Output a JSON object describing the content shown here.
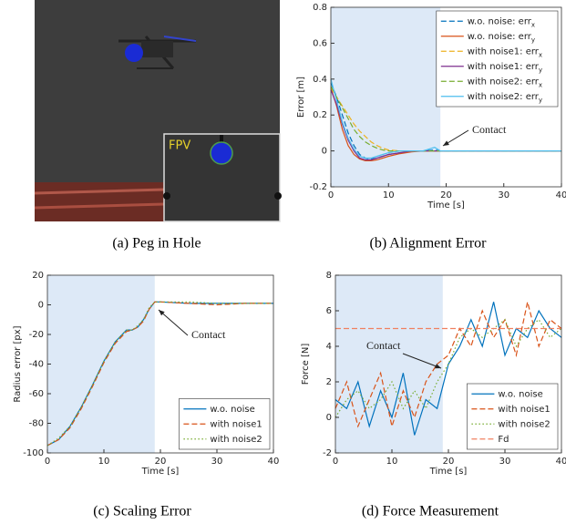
{
  "image_panel": {
    "inset_label": "FPV",
    "caption": "(a) Peg in Hole"
  },
  "chart_data": [
    {
      "type": "line",
      "caption": "(b) Alignment Error",
      "xlabel": "Time [s]",
      "ylabel": "Error [m]",
      "annotation": "Contact",
      "xlim": [
        0,
        40
      ],
      "ylim": [
        -0.2,
        0.8
      ],
      "xticks": [
        0,
        10,
        20,
        30,
        40
      ],
      "yticks": [
        -0.2,
        0,
        0.2,
        0.4,
        0.6,
        0.8
      ],
      "shade": [
        0,
        19
      ],
      "legend": "upper right",
      "x": [
        0,
        1,
        2,
        3,
        4,
        5,
        6,
        7,
        8,
        9,
        10,
        12,
        14,
        16,
        18,
        19,
        20,
        25,
        30,
        35,
        40
      ],
      "series": [
        {
          "name": "w.o. noise: err",
          "name_subscript": "x",
          "color": "#0072bd",
          "dash": "dashed",
          "values": [
            0.38,
            0.3,
            0.2,
            0.1,
            0.03,
            -0.02,
            -0.04,
            -0.045,
            -0.04,
            -0.03,
            -0.02,
            -0.01,
            0,
            0,
            0.005,
            0,
            0,
            0,
            0,
            0,
            0
          ]
        },
        {
          "name": "w.o. noise: err",
          "name_subscript": "y",
          "color": "#d95319",
          "dash": "solid",
          "values": [
            0.35,
            0.25,
            0.12,
            0.03,
            -0.02,
            -0.045,
            -0.055,
            -0.055,
            -0.05,
            -0.04,
            -0.03,
            -0.015,
            -0.005,
            0,
            0,
            0,
            0,
            0,
            0,
            0,
            0
          ]
        },
        {
          "name": "with noise1: err",
          "name_subscript": "x",
          "color": "#edb120",
          "dash": "dashed",
          "values": [
            0.35,
            0.3,
            0.25,
            0.2,
            0.15,
            0.11,
            0.08,
            0.05,
            0.03,
            0.015,
            0.005,
            0,
            0,
            0,
            0,
            0,
            0,
            0,
            0,
            0,
            0
          ]
        },
        {
          "name": "with noise1: err",
          "name_subscript": "y",
          "color": "#7e2f8e",
          "dash": "solid",
          "values": [
            0.34,
            0.26,
            0.15,
            0.06,
            0,
            -0.04,
            -0.05,
            -0.05,
            -0.04,
            -0.03,
            -0.02,
            -0.01,
            0,
            0,
            0,
            0,
            0,
            0,
            0,
            0,
            0
          ]
        },
        {
          "name": "with noise2: err",
          "name_subscript": "x",
          "color": "#77ac30",
          "dash": "dashed",
          "values": [
            0.36,
            0.3,
            0.24,
            0.18,
            0.12,
            0.08,
            0.05,
            0.03,
            0.015,
            0.005,
            0,
            0,
            0,
            0,
            0,
            0,
            0,
            0,
            0,
            0,
            0
          ]
        },
        {
          "name": "with noise2: err",
          "name_subscript": "y",
          "color": "#4dbeee",
          "dash": "solid",
          "values": [
            0.4,
            0.28,
            0.16,
            0.07,
            0.01,
            -0.03,
            -0.04,
            -0.04,
            -0.03,
            -0.02,
            -0.01,
            0,
            0,
            0,
            0.02,
            0,
            0,
            0,
            0,
            0,
            0
          ]
        }
      ]
    },
    {
      "type": "line",
      "caption": "(c) Scaling Error",
      "xlabel": "Time [s]",
      "ylabel": "Radius error [px]",
      "annotation": "Contact",
      "xlim": [
        0,
        40
      ],
      "ylim": [
        -100,
        20
      ],
      "xticks": [
        0,
        10,
        20,
        30,
        40
      ],
      "yticks": [
        -100,
        -80,
        -60,
        -40,
        -20,
        0,
        20
      ],
      "shade": [
        0,
        19
      ],
      "legend": "lower right",
      "x": [
        0,
        2,
        4,
        6,
        8,
        10,
        12,
        14,
        15,
        16,
        17,
        18,
        19,
        20,
        25,
        30,
        35,
        40
      ],
      "series": [
        {
          "name": "w.o. noise",
          "color": "#0072bd",
          "dash": "solid",
          "values": [
            -95,
            -91,
            -82,
            -69,
            -54,
            -38,
            -25,
            -17,
            -17,
            -15,
            -10,
            -3,
            2,
            2,
            1,
            1,
            1,
            1
          ]
        },
        {
          "name": "with noise1",
          "color": "#d95319",
          "dash": "dashed",
          "values": [
            -95,
            -91,
            -83,
            -70,
            -55,
            -39,
            -26,
            -18,
            -17,
            -15,
            -11,
            -3,
            2,
            2,
            1,
            0,
            1,
            1
          ]
        },
        {
          "name": "with noise2",
          "color": "#77ac30",
          "dash": "dotted",
          "values": [
            -95,
            -90,
            -82,
            -69,
            -54,
            -38,
            -25,
            -17,
            -17,
            -14,
            -10,
            -2,
            2,
            2,
            2,
            1,
            1,
            1
          ]
        }
      ]
    },
    {
      "type": "line",
      "caption": "(d) Force Measurement",
      "xlabel": "Time [s]",
      "ylabel": "Force [N]",
      "annotation": "Contact",
      "xlim": [
        0,
        40
      ],
      "ylim": [
        -2,
        8
      ],
      "xticks": [
        0,
        10,
        20,
        30,
        40
      ],
      "yticks": [
        -2,
        0,
        2,
        4,
        6,
        8
      ],
      "shade": [
        0,
        19
      ],
      "legend": "lower right",
      "x": [
        0,
        2,
        4,
        6,
        8,
        10,
        12,
        14,
        16,
        18,
        20,
        22,
        24,
        26,
        28,
        30,
        32,
        34,
        36,
        38,
        40
      ],
      "series": [
        {
          "name": "w.o. noise",
          "color": "#0072bd",
          "dash": "solid",
          "values": [
            1,
            0.5,
            2,
            -0.5,
            1.5,
            0,
            2.5,
            -1,
            1,
            0.5,
            3,
            4,
            5.5,
            4,
            6.5,
            3.5,
            5,
            4.5,
            6,
            5,
            4.5
          ]
        },
        {
          "name": "with noise1",
          "color": "#d95319",
          "dash": "dashed",
          "values": [
            0.5,
            2,
            -0.5,
            1,
            2.5,
            -0.5,
            1.5,
            0,
            2,
            3,
            3.5,
            5,
            4,
            6,
            4.5,
            5.5,
            3.5,
            6.5,
            4,
            5.5,
            5
          ]
        },
        {
          "name": "with noise2",
          "color": "#77ac30",
          "dash": "dotted",
          "values": [
            0,
            1,
            1.5,
            0.5,
            1,
            2,
            0.5,
            1.5,
            0.5,
            2,
            3,
            4.5,
            5,
            4.5,
            5,
            5.5,
            4,
            5,
            5.5,
            4.5,
            5
          ]
        },
        {
          "name": "Fd",
          "color": "#f08060",
          "dash": "dashed",
          "values": [
            5,
            5,
            5,
            5,
            5,
            5,
            5,
            5,
            5,
            5,
            5,
            5,
            5,
            5,
            5,
            5,
            5,
            5,
            5,
            5,
            5
          ]
        }
      ]
    }
  ]
}
